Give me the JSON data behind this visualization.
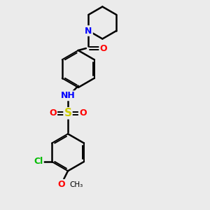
{
  "background_color": "#ebebeb",
  "bond_color": "#000000",
  "atom_colors": {
    "N": "#0000ff",
    "O": "#ff0000",
    "S": "#cccc00",
    "Cl": "#00bb00",
    "C": "#000000",
    "H": "#000000"
  },
  "figsize": [
    3.0,
    3.0
  ],
  "dpi": 100
}
